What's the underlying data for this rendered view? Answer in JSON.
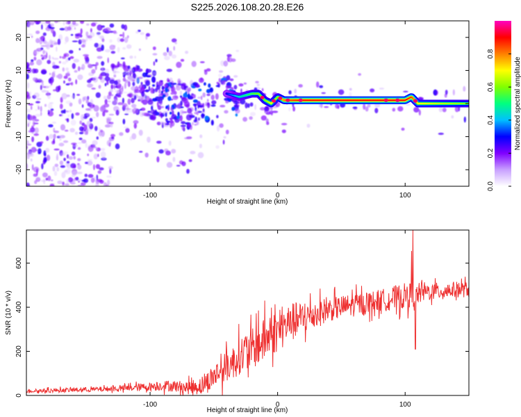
{
  "title": "S225.2026.108.20.28.E26",
  "chart_data": [
    {
      "type": "heatmap",
      "name": "spectrogram",
      "xlabel": "Height of straight line (km)",
      "ylabel": "Frequency (Hz)",
      "xlim": [
        -197,
        150
      ],
      "ylim": [
        -25,
        25
      ],
      "xticks": [
        -100,
        0,
        100
      ],
      "yticks": [
        -20,
        -10,
        0,
        10,
        20
      ],
      "xtick_labels": [
        "-100",
        "0",
        "100"
      ],
      "ytick_labels": [
        "-20",
        "-10",
        "0",
        "10",
        "20"
      ],
      "colorbar": {
        "label": "Normalized spectral amplitude",
        "range": [
          0,
          1
        ],
        "ticks": [
          0.0,
          0.2,
          0.4,
          0.6,
          0.8
        ],
        "tick_labels": [
          "0.0",
          "0.2",
          "0.4",
          "0.6",
          "0.8"
        ],
        "colors": [
          "#ffffff",
          "#c8a0ff",
          "#8000ff",
          "#0000ff",
          "#00c0ff",
          "#00ff80",
          "#80ff00",
          "#ffff00",
          "#ff8000",
          "#ff0000",
          "#ff00c0"
        ]
      },
      "signal_track": {
        "description": "dominant frequency along height",
        "x": [
          -120,
          -100,
          -90,
          -80,
          -70,
          -60,
          -50,
          -40,
          -30,
          -20,
          -15,
          -10,
          -5,
          0,
          5,
          10,
          20,
          40,
          60,
          80,
          90,
          100,
          105,
          110,
          130,
          150
        ],
        "freq": [
          5,
          3,
          0,
          1,
          -2,
          2,
          -1,
          3,
          2,
          3,
          3,
          1,
          0,
          2,
          1,
          1,
          1,
          1,
          1,
          1,
          1,
          1,
          2,
          0,
          0,
          0
        ],
        "amplitude": [
          0.25,
          0.25,
          0.25,
          0.25,
          0.25,
          0.25,
          0.28,
          0.3,
          0.45,
          0.55,
          0.6,
          0.6,
          0.7,
          0.6,
          0.8,
          0.85,
          0.9,
          0.9,
          0.9,
          0.9,
          0.9,
          0.9,
          0.85,
          0.7,
          0.65,
          0.6
        ]
      }
    },
    {
      "type": "line",
      "name": "snr",
      "xlabel": "Height of straight line (km)",
      "ylabel": "SNR (10 * v/v)",
      "xlim": [
        -197,
        150
      ],
      "ylim": [
        0,
        750
      ],
      "xticks": [
        -100,
        0,
        100
      ],
      "yticks": [
        0,
        200,
        400,
        600
      ],
      "xtick_labels": [
        "-100",
        "0",
        "100"
      ],
      "ytick_labels": [
        "0",
        "200",
        "400",
        "600"
      ],
      "color": "#ee3030",
      "series": [
        {
          "name": "SNR",
          "x": [
            -197,
            -180,
            -160,
            -140,
            -120,
            -100,
            -90,
            -80,
            -70,
            -60,
            -55,
            -50,
            -45,
            -40,
            -35,
            -30,
            -25,
            -20,
            -15,
            -10,
            -5,
            0,
            5,
            10,
            15,
            20,
            30,
            40,
            50,
            60,
            70,
            80,
            90,
            95,
            100,
            104,
            106,
            108,
            110,
            115,
            120,
            130,
            140,
            150
          ],
          "y": [
            20,
            22,
            25,
            28,
            32,
            40,
            45,
            42,
            35,
            45,
            60,
            90,
            110,
            130,
            150,
            180,
            200,
            210,
            230,
            250,
            280,
            290,
            310,
            330,
            340,
            350,
            370,
            390,
            400,
            410,
            420,
            430,
            440,
            445,
            450,
            455,
            460,
            455,
            460,
            470,
            470,
            475,
            480,
            480
          ]
        }
      ],
      "spikes": {
        "x": [
          -15,
          -10,
          10,
          105,
          106,
          108
        ],
        "y": [
          385,
          430,
          380,
          655,
          750,
          210
        ]
      },
      "noise_amplitude": [
        [
          -197,
          8
        ],
        [
          -130,
          12
        ],
        [
          -100,
          20
        ],
        [
          -70,
          30
        ],
        [
          -50,
          55
        ],
        [
          -30,
          85
        ],
        [
          -10,
          100
        ],
        [
          10,
          90
        ],
        [
          40,
          55
        ],
        [
          80,
          50
        ],
        [
          100,
          60
        ],
        [
          120,
          40
        ],
        [
          150,
          35
        ]
      ]
    }
  ]
}
